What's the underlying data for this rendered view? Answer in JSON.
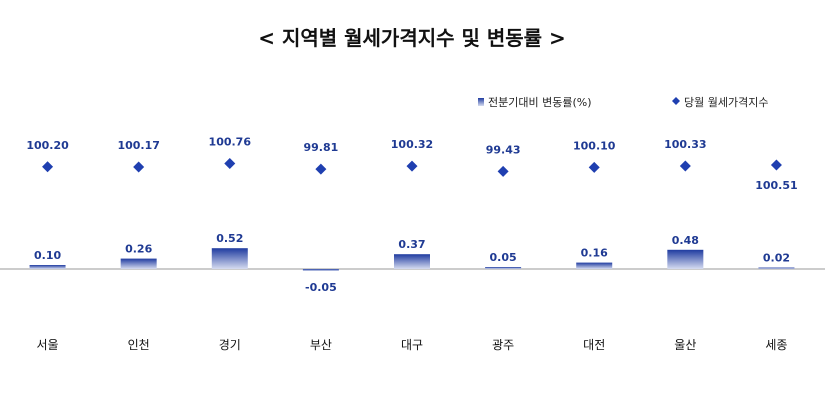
{
  "colors": {
    "bar_top": "#1f3ba0",
    "bar_bottom": "#d6dcf0",
    "marker": "#1f3fb0",
    "label": "#1f3a93",
    "axis": "#999999",
    "text": "#111111"
  },
  "chart_data": {
    "type": "bar",
    "title": "< 지역별 월세가격지수 및 변동률 >",
    "categories": [
      "서울",
      "인천",
      "경기",
      "부산",
      "대구",
      "광주",
      "대전",
      "울산",
      "세종"
    ],
    "series": [
      {
        "name": "전분기대비 변동률(%)",
        "type": "bar",
        "values": [
          0.1,
          0.26,
          0.52,
          -0.05,
          0.37,
          0.05,
          0.16,
          0.48,
          0.02
        ],
        "labels": [
          "0.10",
          "0.26",
          "0.52",
          "-0.05",
          "0.37",
          "0.05",
          "0.16",
          "0.48",
          "0.02"
        ]
      },
      {
        "name": "당월 월세가격지수",
        "type": "scatter",
        "marker": "diamond",
        "values": [
          100.2,
          100.17,
          100.76,
          99.81,
          100.32,
          99.43,
          100.1,
          100.33,
          100.51
        ],
        "labels": [
          "100.20",
          "100.17",
          "100.76",
          "99.81",
          "100.32",
          "99.43",
          "100.10",
          "100.33",
          "100.51"
        ]
      }
    ],
    "legend_position": "top-right",
    "grid": false
  }
}
